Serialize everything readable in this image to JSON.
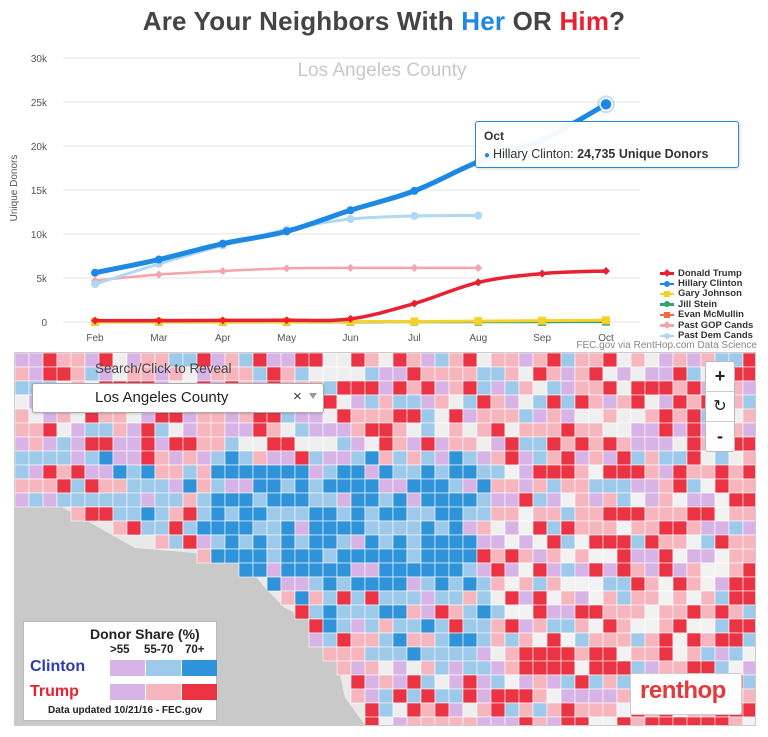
{
  "headline": {
    "pre": "Are Your Neighbors With ",
    "her": "Her",
    "mid": " OR ",
    "him": "Him",
    "post": "?"
  },
  "chart_data": {
    "type": "line",
    "title": "Los Angeles County",
    "ylabel": "Unique Donors",
    "xlabel": "",
    "categories": [
      "Feb",
      "Mar",
      "Apr",
      "May",
      "Jun",
      "Jul",
      "Aug",
      "Sep",
      "Oct"
    ],
    "ylim": [
      0,
      30000
    ],
    "yticks": [
      0,
      5000,
      10000,
      15000,
      20000,
      25000,
      30000
    ],
    "ytick_labels": [
      "0",
      "5k",
      "10k",
      "15k",
      "20k",
      "25k",
      "30k"
    ],
    "grid": true,
    "legend_position": "right",
    "series": [
      {
        "name": "Donald Trump",
        "color": "#e8202f",
        "width": 3.5,
        "marker": "diamond",
        "values": [
          150,
          160,
          180,
          200,
          350,
          2100,
          4500,
          5500,
          5800
        ]
      },
      {
        "name": "Hillary Clinton",
        "color": "#1e88e5",
        "width": 5,
        "marker": "circle",
        "values": [
          5600,
          7100,
          8900,
          10300,
          12700,
          14900,
          18200,
          20700,
          24735
        ]
      },
      {
        "name": "Gary Johnson",
        "color": "#f7d12a",
        "width": 3,
        "marker": "square",
        "values": [
          20,
          25,
          30,
          35,
          40,
          60,
          100,
          150,
          200
        ]
      },
      {
        "name": "Jill Stein",
        "color": "#2ea36b",
        "width": 3,
        "marker": "triangle",
        "values": [
          10,
          12,
          14,
          16,
          18,
          25,
          30,
          35,
          40
        ]
      },
      {
        "name": "Evan McMullin",
        "color": "#ef6a3c",
        "width": 3,
        "marker": "square",
        "values": [
          null,
          null,
          null,
          null,
          null,
          null,
          null,
          40,
          60
        ]
      },
      {
        "name": "Past GOP Cands",
        "color": "#f7a3ab",
        "width": 2.5,
        "marker": "diamond",
        "values": [
          4700,
          5400,
          5800,
          6100,
          6150,
          6150,
          6150,
          null,
          null
        ]
      },
      {
        "name": "Past Dem Cands",
        "color": "#b0d7f5",
        "width": 3,
        "marker": "circle",
        "values": [
          4300,
          6600,
          8700,
          10500,
          11700,
          12050,
          12100,
          null,
          null
        ]
      }
    ],
    "tooltip": {
      "title": "Oct",
      "series": "Hillary Clinton",
      "text": "Hillary Clinton: ",
      "value": "24,735 Unique Donors"
    }
  },
  "credit": "FEC.gov via RentHop.com Data Science",
  "map": {
    "search_label": "Search/Click to Reveal",
    "search_value": "Los Angeles County",
    "clear": "×",
    "zoom_in": "+",
    "reset": "↻",
    "zoom_out": "-",
    "key": {
      "title": "Donor Share (%)",
      "bins": [
        ">55",
        "55-70",
        "70+"
      ],
      "clinton_label": "Clinton",
      "trump_label": "Trump",
      "clinton_color": "#2a3bb0",
      "trump_color": "#e8202f",
      "clinton_swatches": [
        "#d7b3e6",
        "#9dc9ea",
        "#2f93da"
      ],
      "trump_swatches": [
        "#d7b3e6",
        "#f7b6bd",
        "#ec3344"
      ],
      "footer": "Data updated 10/21/16 - FEC.gov"
    },
    "brand": "renthop"
  }
}
